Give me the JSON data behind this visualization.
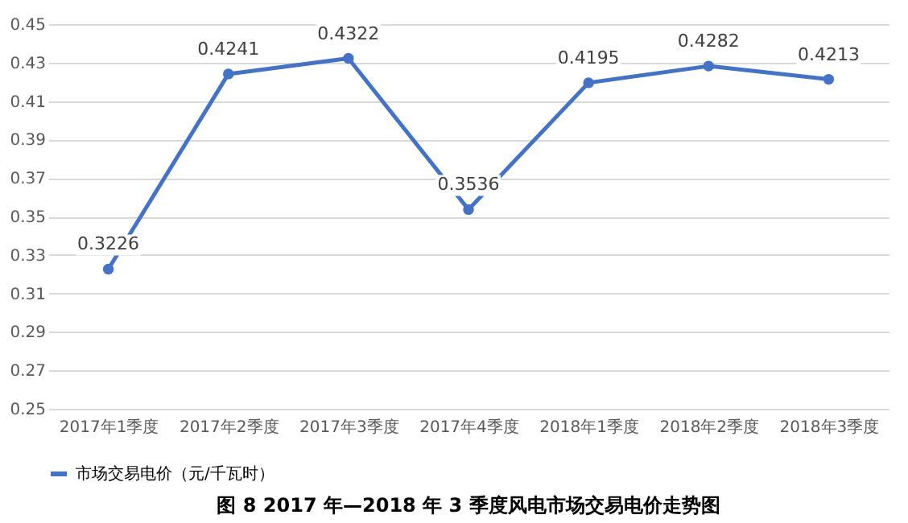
{
  "chart_data": {
    "type": "line",
    "title": "图 8 2017 年—2018 年 3 季度风电市场交易电价走势图",
    "categories": [
      "2017年1季度",
      "2017年2季度",
      "2017年3季度",
      "2017年4季度",
      "2018年1季度",
      "2018年2季度",
      "2018年3季度"
    ],
    "series": [
      {
        "name": "市场交易电价（元/千瓦时）",
        "color": "#4472c4",
        "values": [
          0.3226,
          0.4241,
          0.4322,
          0.3536,
          0.4195,
          0.4282,
          0.4213
        ]
      }
    ],
    "ylim": [
      0.25,
      0.45
    ],
    "yticks": [
      0.25,
      0.27,
      0.29,
      0.31,
      0.33,
      0.35,
      0.37,
      0.39,
      0.41,
      0.43,
      0.45
    ],
    "grid": "y",
    "legend": "bottom",
    "marker": "circle",
    "line_style": "solid",
    "data_labels": true
  }
}
